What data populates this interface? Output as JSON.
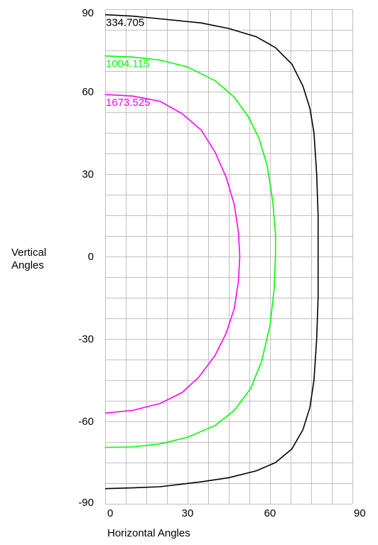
{
  "chart_data": {
    "type": "line",
    "title": "",
    "xlabel": "Horizontal Angles",
    "ylabel_line1": "Vertical",
    "ylabel_line2": "Angles",
    "xlim": [
      0,
      90
    ],
    "ylim": [
      -90,
      90
    ],
    "x_ticks": [
      "0",
      "30",
      "60",
      "90"
    ],
    "y_ticks": [
      "90",
      "60",
      "30",
      "0",
      "-30",
      "-60",
      "-90"
    ],
    "x_tick_values": [
      0,
      30,
      60,
      90
    ],
    "y_tick_values": [
      90,
      60,
      30,
      0,
      -30,
      -60,
      -90
    ],
    "x_grid_step": 7.5,
    "y_grid_step": 7.5,
    "grid": true,
    "grid_color": "#c0c0c0",
    "series": [
      {
        "name": "334.705",
        "color": "#000000",
        "points": [
          [
            0,
            88
          ],
          [
            10,
            87.5
          ],
          [
            20,
            86.5
          ],
          [
            35,
            85
          ],
          [
            45,
            83
          ],
          [
            55,
            80
          ],
          [
            62,
            76
          ],
          [
            68,
            70
          ],
          [
            72,
            62
          ],
          [
            74.5,
            54
          ],
          [
            76,
            45
          ],
          [
            77,
            30
          ],
          [
            77.5,
            15
          ],
          [
            77.5,
            0
          ],
          [
            77.5,
            -15
          ],
          [
            77,
            -30
          ],
          [
            76,
            -45
          ],
          [
            74.5,
            -55
          ],
          [
            72,
            -63
          ],
          [
            68,
            -70
          ],
          [
            62,
            -75
          ],
          [
            55,
            -78
          ],
          [
            45,
            -80.5
          ],
          [
            35,
            -82
          ],
          [
            20,
            -83.8
          ],
          [
            10,
            -84.2
          ],
          [
            0,
            -84.5
          ]
        ]
      },
      {
        "name": "1004.115",
        "color": "#00ff00",
        "points": [
          [
            0,
            73
          ],
          [
            10,
            72.6
          ],
          [
            20,
            71.5
          ],
          [
            30,
            69
          ],
          [
            40,
            64
          ],
          [
            47,
            58
          ],
          [
            52,
            51
          ],
          [
            56,
            43
          ],
          [
            59,
            33
          ],
          [
            61,
            20
          ],
          [
            62,
            8
          ],
          [
            62,
            0
          ],
          [
            61.5,
            -12
          ],
          [
            60,
            -25
          ],
          [
            57,
            -38
          ],
          [
            53,
            -48
          ],
          [
            47,
            -56
          ],
          [
            40,
            -61.5
          ],
          [
            30,
            -65.8
          ],
          [
            20,
            -68.2
          ],
          [
            10,
            -69.3
          ],
          [
            0,
            -69.5
          ]
        ]
      },
      {
        "name": "1673.525",
        "color": "#ff00ff",
        "points": [
          [
            0,
            59
          ],
          [
            10,
            58.4
          ],
          [
            20,
            56.5
          ],
          [
            28,
            52
          ],
          [
            35,
            46
          ],
          [
            40,
            38
          ],
          [
            44,
            29
          ],
          [
            47,
            19
          ],
          [
            48.5,
            9
          ],
          [
            49,
            0
          ],
          [
            48.5,
            -9
          ],
          [
            47,
            -19
          ],
          [
            44,
            -28
          ],
          [
            40,
            -36
          ],
          [
            34,
            -44
          ],
          [
            28,
            -49.5
          ],
          [
            20,
            -53.5
          ],
          [
            10,
            -56
          ],
          [
            0,
            -57
          ]
        ]
      }
    ]
  }
}
